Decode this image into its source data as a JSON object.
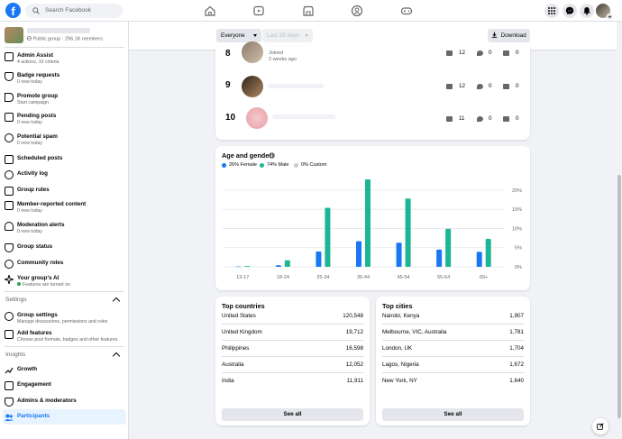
{
  "topbar": {
    "search_placeholder": "Search Facebook"
  },
  "group": {
    "meta": "Public group · 296.1K members"
  },
  "sidebar": {
    "items": [
      {
        "label": "Admin Assist",
        "sub": "4 actions, 10 criteria"
      },
      {
        "label": "Badge requests",
        "sub": "0 new today"
      },
      {
        "label": "Promote group",
        "sub": "Start campaign"
      },
      {
        "label": "Pending posts",
        "sub": "0 new today"
      },
      {
        "label": "Potential spam",
        "sub": "0 new today"
      },
      {
        "label": "Scheduled posts",
        "sub": ""
      },
      {
        "label": "Activity log",
        "sub": ""
      },
      {
        "label": "Group rules",
        "sub": ""
      },
      {
        "label": "Member-reported content",
        "sub": "0 new today"
      },
      {
        "label": "Moderation alerts",
        "sub": "0 new today"
      },
      {
        "label": "Group status",
        "sub": ""
      },
      {
        "label": "Community roles",
        "sub": ""
      },
      {
        "label": "Your group's AI",
        "sub": "Features are turned on"
      }
    ],
    "settings_title": "Settings",
    "settings_items": [
      {
        "label": "Group settings",
        "sub": "Manage discussions, permissions and roles"
      },
      {
        "label": "Add features",
        "sub": "Choose post formats, badges and other features"
      }
    ],
    "insights_title": "Insights",
    "insights_items": [
      {
        "label": "Growth"
      },
      {
        "label": "Engagement"
      },
      {
        "label": "Admins & moderators"
      },
      {
        "label": "Participants"
      }
    ]
  },
  "filters": {
    "audience": "Everyone",
    "range": "Last 28 days",
    "download": "Download"
  },
  "members": [
    {
      "rank": "8",
      "line1": "Joined",
      "line2": "2 weeks ago",
      "posts": "12",
      "comments": "0",
      "reactions": "0"
    },
    {
      "rank": "9",
      "posts": "12",
      "comments": "0",
      "reactions": "0"
    },
    {
      "rank": "10",
      "posts": "11",
      "comments": "0",
      "reactions": "0"
    }
  ],
  "age_gender": {
    "title": "Age and gender",
    "legend": [
      "26% Female",
      "74% Male",
      "0% Custom"
    ],
    "colors": {
      "female": "#1877f2",
      "male": "#1cb596",
      "custom": "#c9ccd1"
    }
  },
  "chart_data": {
    "type": "bar",
    "categories": [
      "13-17",
      "18-24",
      "25-34",
      "35-44",
      "45-54",
      "55-64",
      "65+"
    ],
    "series": [
      {
        "name": "26% Female",
        "values": [
          0.1,
          0.4,
          4.0,
          6.7,
          6.3,
          4.5,
          3.9
        ]
      },
      {
        "name": "74% Male",
        "values": [
          0.2,
          1.7,
          15.4,
          22.8,
          17.8,
          9.9,
          7.3
        ]
      }
    ],
    "yticks": [
      "0%",
      "5%",
      "10%",
      "15%",
      "20%"
    ],
    "ylim": [
      0,
      22.8
    ],
    "grid": true
  },
  "top_countries": {
    "title": "Top countries",
    "rows": [
      {
        "name": "United States",
        "value": "120,548"
      },
      {
        "name": "United Kingdom",
        "value": "19,712"
      },
      {
        "name": "Philippines",
        "value": "16,598"
      },
      {
        "name": "Australia",
        "value": "12,052"
      },
      {
        "name": "India",
        "value": "11,911"
      }
    ],
    "see_all": "See all"
  },
  "top_cities": {
    "title": "Top cities",
    "rows": [
      {
        "name": "Nairobi, Kenya",
        "value": "1,907"
      },
      {
        "name": "Melbourne, VIC, Australia",
        "value": "1,781"
      },
      {
        "name": "London, UK",
        "value": "1,704"
      },
      {
        "name": "Lagos, Nigeria",
        "value": "1,672"
      },
      {
        "name": "New York, NY",
        "value": "1,640"
      }
    ],
    "see_all": "See all"
  }
}
